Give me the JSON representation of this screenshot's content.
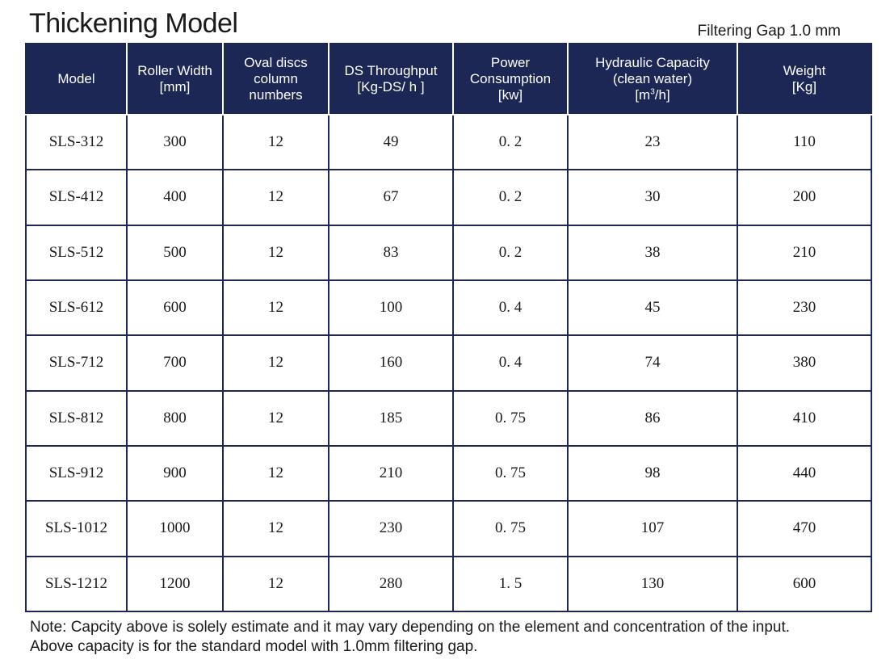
{
  "title": "Thickening Model",
  "subtitle": "Filtering Gap 1.0 mm",
  "colors": {
    "header_bg": "#1c2755",
    "header_text": "#ffffff",
    "border": "#1c2755"
  },
  "table": {
    "headers": [
      {
        "line1": "Model",
        "line2": "",
        "line3": ""
      },
      {
        "line1": "Roller Width",
        "line2": "[mm]",
        "line3": ""
      },
      {
        "line1": "Oval discs",
        "line2": "column",
        "line3": "numbers"
      },
      {
        "line1": "DS Throughput",
        "line2": "[Kg-DS/ h ]",
        "line3": ""
      },
      {
        "line1": "Power",
        "line2": "Consumption",
        "line3": "[kw]"
      },
      {
        "line1": "Hydraulic Capacity",
        "line2": "(clean water)",
        "line3_pre": "[m",
        "line3_sup": "3",
        "line3_post": "/h]"
      },
      {
        "line1": "Weight",
        "line2": "[Kg]",
        "line3": ""
      }
    ],
    "rows": [
      [
        "SLS-312",
        "300",
        "12",
        "49",
        "0. 2",
        "23",
        "110"
      ],
      [
        "SLS-412",
        "400",
        "12",
        "67",
        "0. 2",
        "30",
        "200"
      ],
      [
        "SLS-512",
        "500",
        "12",
        "83",
        "0. 2",
        "38",
        "210"
      ],
      [
        "SLS-612",
        "600",
        "12",
        "100",
        "0. 4",
        "45",
        "230"
      ],
      [
        "SLS-712",
        "700",
        "12",
        "160",
        "0. 4",
        "74",
        "380"
      ],
      [
        "SLS-812",
        "800",
        "12",
        "185",
        "0. 75",
        "86",
        "410"
      ],
      [
        "SLS-912",
        "900",
        "12",
        "210",
        "0. 75",
        "98",
        "440"
      ],
      [
        "SLS-1012",
        "1000",
        "12",
        "230",
        "0. 75",
        "107",
        "470"
      ],
      [
        "SLS-1212",
        "1200",
        "12",
        "280",
        "1. 5",
        "130",
        "600"
      ]
    ]
  },
  "note": {
    "line1": "Note: Capcity above is solely estimate and it may vary depending on the element and concentration of the input.",
    "line2": "Above capacity is for the standard model with 1.0mm  filtering gap."
  }
}
